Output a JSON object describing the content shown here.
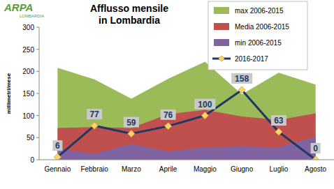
{
  "chart_data": {
    "type": "area",
    "title": "Afflusso mensile\nin Lombardia",
    "logo": "ARPA",
    "logo_subtitle": "LOMBARDIA",
    "y_label": "millimetri/mese",
    "categories": [
      "Gennaio",
      "Febbraio",
      "Marzo",
      "Aprile",
      "Maggio",
      "Giugno",
      "Luglio",
      "Agosto"
    ],
    "series": [
      {
        "name": "max 2006-2015",
        "type": "area",
        "color": "#9bbb59",
        "values": [
          208,
          182,
          138,
          183,
          222,
          148,
          197,
          170
        ]
      },
      {
        "name": "Media 2006-2015",
        "type": "area",
        "color": "#c0504d",
        "values": [
          72,
          74,
          72,
          103,
          113,
          98,
          90,
          105
        ]
      },
      {
        "name": "min 2006-2015",
        "type": "area",
        "color": "#8064a2",
        "values": [
          25,
          13,
          36,
          18,
          28,
          30,
          28,
          52
        ]
      },
      {
        "name": "2016-2017",
        "type": "line",
        "color": "#1f3864",
        "marker": "diamond",
        "values": [
          6,
          77,
          59,
          76,
          100,
          158,
          63,
          0
        ]
      }
    ],
    "data_labels": true,
    "ylim": [
      0,
      300
    ],
    "yticks": [
      0,
      50,
      100,
      150,
      200,
      250,
      300
    ],
    "grid": false,
    "legend": "top-right"
  }
}
